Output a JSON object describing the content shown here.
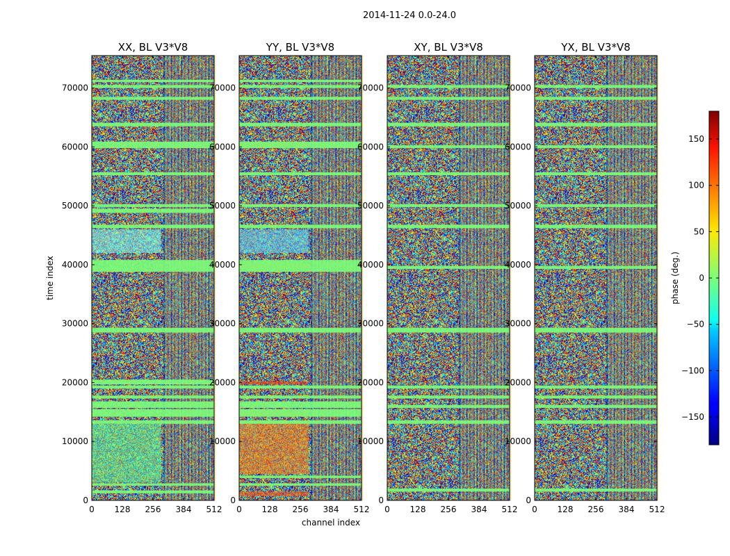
{
  "chart_data": {
    "type": "heatmap",
    "suptitle": "2014-11-24 0.0-24.0",
    "xlabel": "channel index",
    "ylabel": "time index",
    "xlim": [
      0,
      512
    ],
    "ylim": [
      0,
      75500
    ],
    "xticks": [
      0,
      128,
      256,
      384,
      512
    ],
    "yticks": [
      0,
      10000,
      20000,
      30000,
      40000,
      50000,
      60000,
      70000
    ],
    "panels": [
      {
        "title": "XX, BL V3*V8",
        "polarization": "XX",
        "baseline": "V3*V8",
        "flagged_bands": [
          [
            1200,
            1700
          ],
          [
            2500,
            2900
          ],
          [
            13000,
            13600
          ],
          [
            14200,
            15500
          ],
          [
            15700,
            16800
          ],
          [
            17300,
            17800
          ],
          [
            19000,
            19500
          ],
          [
            19700,
            20500
          ],
          [
            28500,
            29300
          ],
          [
            38800,
            40800
          ],
          [
            46200,
            46800
          ],
          [
            48800,
            49500
          ],
          [
            49800,
            50300
          ],
          [
            55200,
            55700
          ],
          [
            59800,
            60900
          ],
          [
            63500,
            64100
          ],
          [
            68000,
            68500
          ],
          [
            70000,
            70500
          ],
          [
            71000,
            71400
          ]
        ],
        "band_left": [
          [
            3000,
            13000,
            "#63ff96"
          ],
          [
            42000,
            46000,
            "#7ffff5"
          ]
        ]
      },
      {
        "title": "YY, BL V3*V8",
        "polarization": "YY",
        "baseline": "V3*V8",
        "flagged_bands": [
          [
            2500,
            2900
          ],
          [
            3800,
            4200
          ],
          [
            13000,
            13600
          ],
          [
            14200,
            15500
          ],
          [
            15700,
            16800
          ],
          [
            17300,
            17800
          ],
          [
            19000,
            19500
          ],
          [
            28500,
            29300
          ],
          [
            38800,
            40800
          ],
          [
            46200,
            46800
          ],
          [
            49800,
            50300
          ],
          [
            55200,
            55700
          ],
          [
            59800,
            60900
          ],
          [
            63500,
            64100
          ],
          [
            68000,
            68500
          ],
          [
            70000,
            70500
          ],
          [
            71000,
            71400
          ]
        ],
        "band_left": [
          [
            4500,
            13500,
            "#ff8a1a"
          ],
          [
            700,
            1500,
            "#ff5a0f"
          ],
          [
            14300,
            15200,
            "#ff4d00"
          ],
          [
            19700,
            20200,
            "#ff3200"
          ],
          [
            39300,
            40300,
            "#ff6a00"
          ],
          [
            60000,
            60700,
            "#ff3a00"
          ],
          [
            49900,
            50300,
            "#ff6d00"
          ],
          [
            42000,
            46000,
            "#5fd8ff"
          ]
        ]
      },
      {
        "title": "XY, BL V3*V8",
        "polarization": "XY",
        "baseline": "V3*V8",
        "flagged_bands": [
          [
            1500,
            2000
          ],
          [
            13000,
            13600
          ],
          [
            15700,
            16200
          ],
          [
            17300,
            17800
          ],
          [
            19000,
            19500
          ],
          [
            28500,
            29300
          ],
          [
            39300,
            39800
          ],
          [
            46200,
            46800
          ],
          [
            49800,
            50300
          ],
          [
            55200,
            55700
          ],
          [
            59800,
            60300
          ],
          [
            63500,
            64100
          ],
          [
            68000,
            68500
          ],
          [
            70000,
            70500
          ]
        ],
        "band_left": []
      },
      {
        "title": "YX, BL V3*V8",
        "polarization": "YX",
        "baseline": "V3*V8",
        "flagged_bands": [
          [
            1500,
            2000
          ],
          [
            13000,
            13600
          ],
          [
            15700,
            16200
          ],
          [
            17300,
            17800
          ],
          [
            19000,
            19500
          ],
          [
            28500,
            29300
          ],
          [
            39300,
            39800
          ],
          [
            46200,
            46800
          ],
          [
            49800,
            50300
          ],
          [
            55200,
            55700
          ],
          [
            59800,
            60300
          ],
          [
            63500,
            64100
          ],
          [
            68000,
            68500
          ],
          [
            70000,
            70500
          ]
        ],
        "band_left": []
      }
    ],
    "colorbar": {
      "label": "phase (deg.)",
      "colormap": "jet",
      "range": [
        -180,
        180
      ],
      "ticks": [
        -150,
        -100,
        -50,
        0,
        50,
        100,
        150
      ],
      "tick_labels": [
        "−150",
        "−100",
        "−50",
        "0",
        "50",
        "100",
        "150"
      ]
    }
  }
}
